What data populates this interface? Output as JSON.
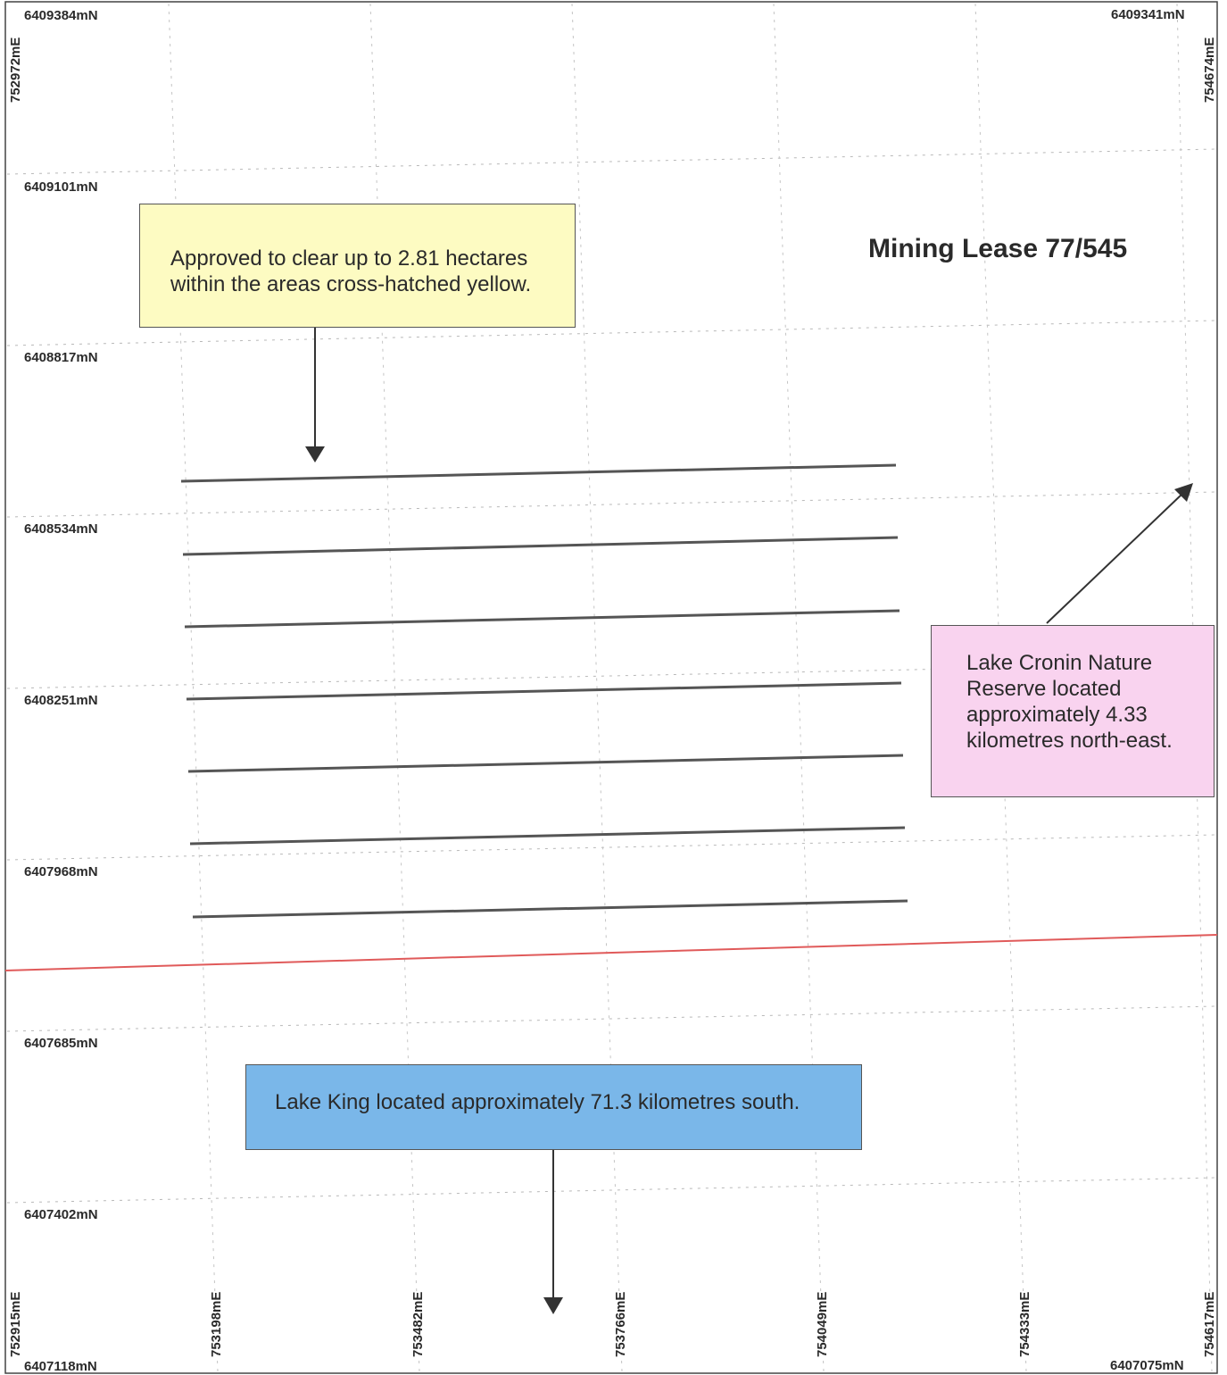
{
  "corners": {
    "top_left_northing": "6409384mN",
    "top_left_easting": "752972mE",
    "top_right_northing": "6409341mN",
    "top_right_easting": "754674mE",
    "bottom_left_northing": "6407118mN",
    "bottom_left_easting": "752915mE",
    "bottom_right_northing": "6407075mN",
    "bottom_right_easting": "754617mE"
  },
  "northing_labels": [
    "6409101mN",
    "6408817mN",
    "6408534mN",
    "6408251mN",
    "6407968mN",
    "6407685mN",
    "6407402mN"
  ],
  "easting_labels": [
    "753198mE",
    "753482mE",
    "753766mE",
    "754049mE",
    "754333mE"
  ],
  "lease_title": "Mining Lease 77/545",
  "callouts": {
    "clearing": {
      "line1": "Approved to clear up to 2.81 hectares",
      "line2": "within the areas cross-hatched yellow.",
      "color": "#fdfbc2"
    },
    "nature_reserve": {
      "line1": "Lake Cronin Nature",
      "line2": "Reserve located",
      "line3": "approximately 4.33",
      "line4": "kilometres north-east.",
      "color": "#f9d3ef"
    },
    "lake_king": {
      "text": "Lake King located approximately 71.3 kilometres south.",
      "color": "#7ab7e9"
    }
  },
  "colors": {
    "boundary_line": "#e05a5a",
    "grid_line": "#b8b8b8",
    "clearing_lines": "#555555",
    "arrow": "#333333"
  }
}
